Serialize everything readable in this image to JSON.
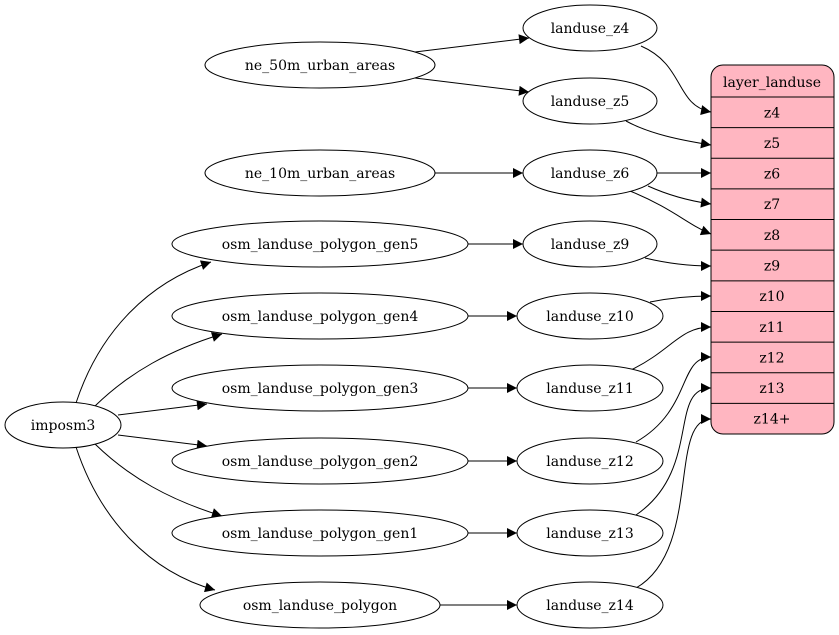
{
  "record": {
    "title": "layer_landuse",
    "fill": "#ffb6c1",
    "fields": [
      "z4",
      "z5",
      "z6",
      "z7",
      "z8",
      "z9",
      "z10",
      "z11",
      "z12",
      "z13",
      "z14+"
    ]
  },
  "nodes": {
    "imposm3": "imposm3",
    "gen5": "osm_landuse_polygon_gen5",
    "gen4": "osm_landuse_polygon_gen4",
    "gen3": "osm_landuse_polygon_gen3",
    "gen2": "osm_landuse_polygon_gen2",
    "gen1": "osm_landuse_polygon_gen1",
    "poly": "osm_landuse_polygon",
    "ne50": "ne_50m_urban_areas",
    "ne10": "ne_10m_urban_areas",
    "lz4": "landuse_z4",
    "lz5": "landuse_z5",
    "lz6": "landuse_z6",
    "lz9": "landuse_z9",
    "lz10": "landuse_z10",
    "lz11": "landuse_z11",
    "lz12": "landuse_z12",
    "lz13": "landuse_z13",
    "lz14": "landuse_z14"
  },
  "edges": [
    [
      "ne50",
      "lz4"
    ],
    [
      "ne50",
      "lz5"
    ],
    [
      "ne10",
      "lz6"
    ],
    [
      "imposm3",
      "gen5"
    ],
    [
      "imposm3",
      "gen4"
    ],
    [
      "imposm3",
      "gen3"
    ],
    [
      "imposm3",
      "gen2"
    ],
    [
      "imposm3",
      "gen1"
    ],
    [
      "imposm3",
      "poly"
    ],
    [
      "gen5",
      "lz9"
    ],
    [
      "gen4",
      "lz10"
    ],
    [
      "gen3",
      "lz11"
    ],
    [
      "gen2",
      "lz12"
    ],
    [
      "gen1",
      "lz13"
    ],
    [
      "poly",
      "lz14"
    ],
    [
      "lz4",
      "z4"
    ],
    [
      "lz5",
      "z5"
    ],
    [
      "lz6",
      "z6"
    ],
    [
      "lz6",
      "z7"
    ],
    [
      "lz6",
      "z8"
    ],
    [
      "lz9",
      "z9"
    ],
    [
      "lz10",
      "z10"
    ],
    [
      "lz11",
      "z11"
    ],
    [
      "lz12",
      "z12"
    ],
    [
      "lz13",
      "z13"
    ],
    [
      "lz14",
      "z14+"
    ]
  ]
}
